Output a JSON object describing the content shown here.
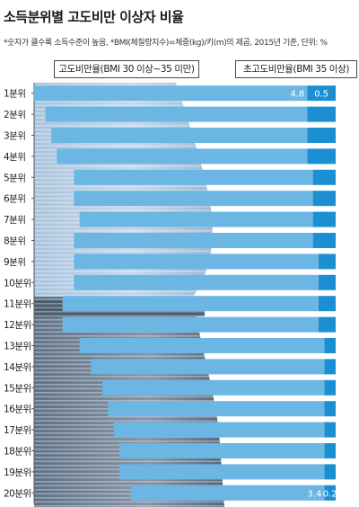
{
  "title": "소득분위별 고도비만 이상자 비율",
  "note": "*숫자가 클수록 소득수준이 높음, *BMI(체질량지수)=체중(kg)/키(m)의 제곱, 2015년 기준, 단위: %",
  "legend": {
    "obese": "고도비만율(BMI 30 이상~35 미만)",
    "severe": "초고도비만율(BMI 35 이상)"
  },
  "colors": {
    "obese": "#6cb6e4",
    "severe": "#1c8fd2",
    "label_text": "#ffffff",
    "axis": "#555555"
  },
  "chart_data": {
    "type": "bar",
    "orientation": "horizontal",
    "stacked": true,
    "categories": [
      "1분위",
      "2분위",
      "3분위",
      "4분위",
      "5분위",
      "6분위",
      "7분위",
      "8분위",
      "9분위",
      "10분위",
      "11분위",
      "12분위",
      "13분위",
      "14분위",
      "15분위",
      "16분위",
      "17분위",
      "18분위",
      "19분위",
      "20분위"
    ],
    "series": [
      {
        "name": "고도비만율(BMI 30 이상~35 미만)",
        "values": [
          4.8,
          4.6,
          4.5,
          4.4,
          4.2,
          4.2,
          4.1,
          4.2,
          4.3,
          4.3,
          4.5,
          4.5,
          4.3,
          4.1,
          3.9,
          3.8,
          3.7,
          3.6,
          3.6,
          3.4
        ]
      },
      {
        "name": "초고도비만율(BMI 35 이상)",
        "values": [
          0.5,
          0.5,
          0.5,
          0.5,
          0.4,
          0.4,
          0.4,
          0.4,
          0.3,
          0.3,
          0.3,
          0.3,
          0.2,
          0.2,
          0.2,
          0.2,
          0.2,
          0.2,
          0.2,
          0.2
        ]
      }
    ],
    "data_labels": [
      {
        "category": "1분위",
        "obese": "4.8",
        "severe": "0.5"
      },
      {
        "category": "20분위",
        "obese": "3.4",
        "severe": "0.2"
      }
    ],
    "xlim": [
      0,
      5.3
    ],
    "grid": false,
    "legend_position": "top"
  }
}
